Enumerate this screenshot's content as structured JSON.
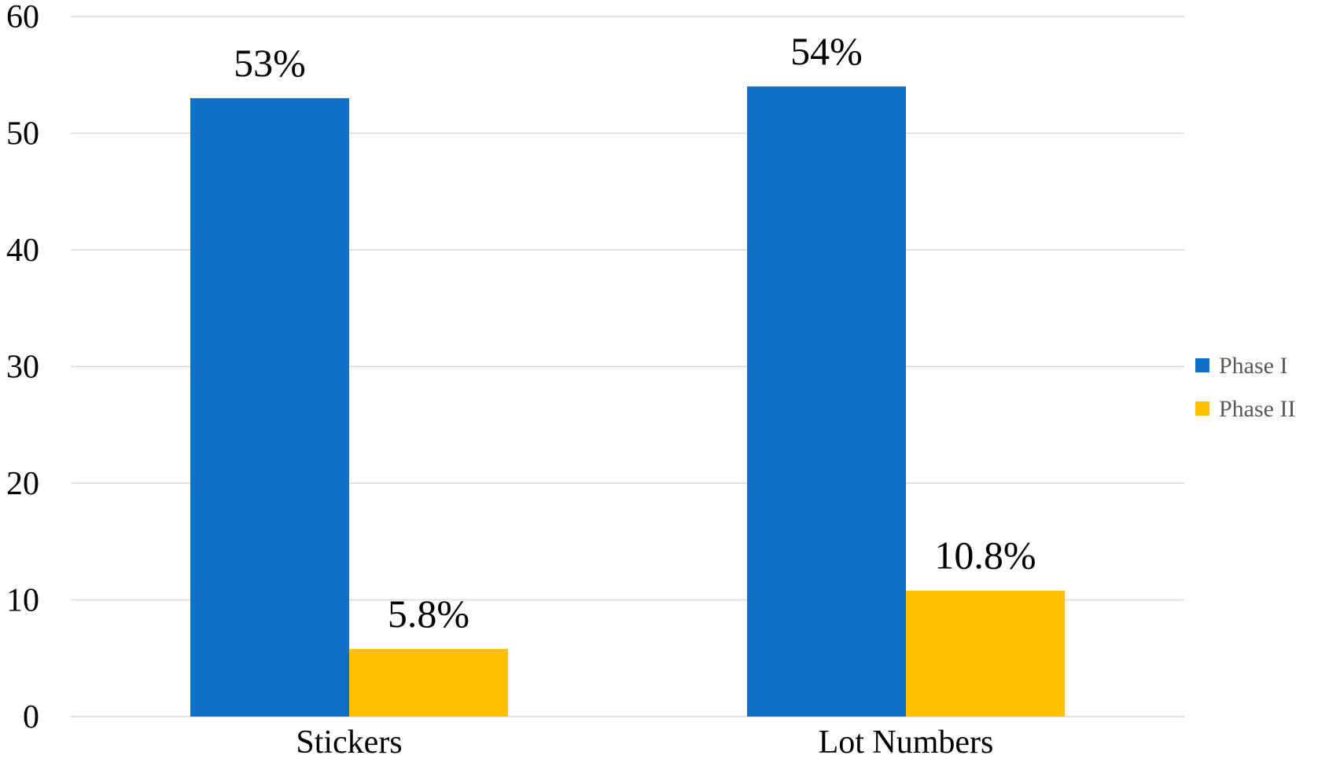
{
  "chart_data": {
    "type": "bar",
    "categories": [
      "Stickers",
      "Lot Numbers"
    ],
    "series": [
      {
        "name": "Phase I",
        "color": "#1170C8",
        "values": [
          53,
          54
        ],
        "labels": [
          "53%",
          "54%"
        ]
      },
      {
        "name": "Phase II",
        "color": "#FFC000",
        "values": [
          5.8,
          10.8
        ],
        "labels": [
          "5.8%",
          "10.8%"
        ]
      }
    ],
    "title": "",
    "xlabel": "",
    "ylabel": "",
    "ylim": [
      0,
      60
    ],
    "yticks": [
      0,
      10,
      20,
      30,
      40,
      50,
      60
    ],
    "grid": true,
    "legend_position": "right"
  }
}
